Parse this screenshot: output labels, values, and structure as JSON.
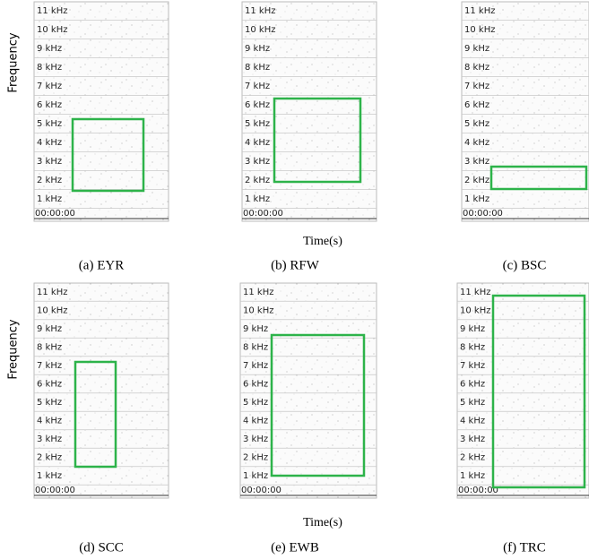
{
  "figure": {
    "y_label": "Frequency",
    "x_label": "Time(s)",
    "tick_labels": [
      "11 kHz",
      "10 kHz",
      "9 kHz",
      "8 kHz",
      "7 kHz",
      "6 kHz",
      "5 kHz",
      "4 kHz",
      "3 kHz",
      "2 kHz",
      "1 kHz"
    ],
    "time_label": "00:00:00",
    "panels": [
      {
        "caption": "(a) EYR"
      },
      {
        "caption": "(b) RFW"
      },
      {
        "caption": "(c) BSC"
      },
      {
        "caption": "(d) SCC"
      },
      {
        "caption": "(e) EWB"
      },
      {
        "caption": "(f) TRC"
      }
    ]
  }
}
